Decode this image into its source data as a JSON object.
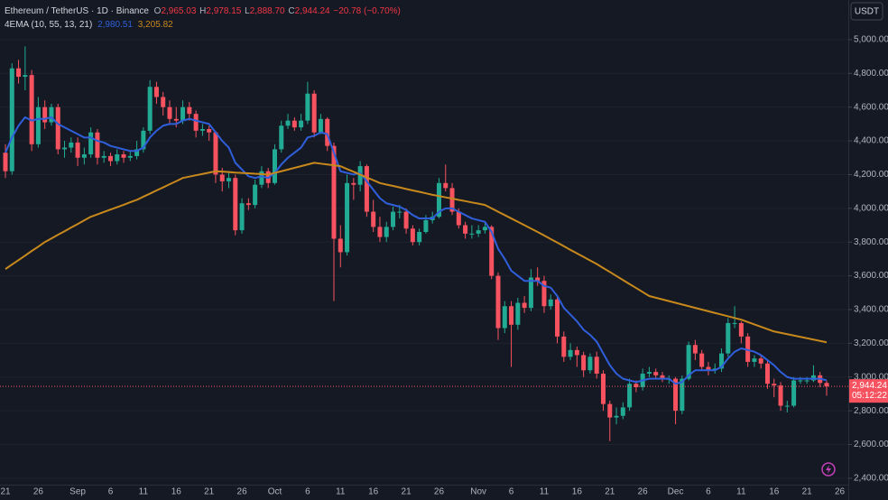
{
  "chart_data": {
    "type": "candlestick",
    "legend": {
      "symbol": "Ethereum / TetherUS · 1D · Binance",
      "ohlc": [
        {
          "key": "O",
          "value": "2,965.03"
        },
        {
          "key": "H",
          "value": "2,978.15"
        },
        {
          "key": "L",
          "value": "2,888.70"
        },
        {
          "key": "C",
          "value": "2,944.24"
        }
      ],
      "change": "−20.78 (−0.70%)",
      "indicator": "4EMA (10, 55, 13, 21)"
    },
    "currency_button": "USDT",
    "last_price_label": "2,944.24",
    "countdown": "05:12:22",
    "up_color": "#22ab94",
    "down_color": "#f7525f",
    "grid": true,
    "categories": [
      "21",
      null,
      null,
      null,
      null,
      "26",
      null,
      null,
      null,
      null,
      null,
      "Sep",
      null,
      null,
      null,
      null,
      "6",
      null,
      null,
      null,
      null,
      "11",
      null,
      null,
      null,
      null,
      "16",
      null,
      null,
      null,
      null,
      "21",
      null,
      null,
      null,
      null,
      "26",
      null,
      null,
      null,
      null,
      "Oct",
      null,
      null,
      null,
      null,
      "6",
      null,
      null,
      null,
      null,
      "11",
      null,
      null,
      null,
      null,
      "16",
      null,
      null,
      null,
      null,
      "21",
      null,
      null,
      null,
      null,
      "26",
      null,
      null,
      null,
      null,
      null,
      "Nov",
      null,
      null,
      null,
      null,
      "6",
      null,
      null,
      null,
      null,
      "11",
      null,
      null,
      null,
      null,
      "16",
      null,
      null,
      null,
      null,
      "21",
      null,
      null,
      null,
      null,
      "26",
      null,
      null,
      null,
      null,
      "Dec",
      null,
      null,
      null,
      null,
      "6",
      null,
      null,
      null,
      null,
      "11",
      null,
      null,
      null,
      null,
      "16",
      null,
      null,
      null,
      null,
      "21",
      null,
      null,
      null,
      null,
      "26"
    ],
    "open": [
      4330,
      4220,
      4830,
      4780,
      4790,
      4380,
      4600,
      4510,
      4600,
      4350,
      4360,
      4390,
      4300,
      4320,
      4450,
      4300,
      4310,
      4280,
      4320,
      4300,
      4310,
      4350,
      4460,
      4720,
      4660,
      4600,
      4530,
      4520,
      4600,
      4560,
      4460,
      4470,
      4450,
      4200,
      4160,
      4180,
      3870,
      4030,
      4020,
      4140,
      4220,
      4150,
      4350,
      4490,
      4520,
      4480,
      4520,
      4680,
      4450,
      4530,
      4370,
      3820,
      3740,
      4150,
      4140,
      4250,
      3980,
      3890,
      3830,
      3890,
      3980,
      3980,
      3880,
      3800,
      3860,
      3930,
      3950,
      4150,
      4120,
      3980,
      3900,
      3850,
      3850,
      3870,
      3890,
      3600,
      3290,
      3420,
      3310,
      3440,
      3410,
      3590,
      3570,
      3420,
      3460,
      3240,
      3120,
      3160,
      3130,
      3040,
      3120,
      3020,
      2840,
      2760,
      2770,
      2820,
      2960,
      2940,
      3020,
      3030,
      3010,
      2990,
      2990,
      2800,
      2990,
      3190,
      3140,
      3060,
      3040,
      3050,
      3140,
      3320,
      3320,
      3240,
      3090,
      3110,
      3080,
      2960,
      2950,
      2830,
      2830,
      2980,
      2980,
      2980,
      3010,
      2965.03,
      null,
      null
    ],
    "high": [
      4380,
      4860,
      4880,
      4960,
      4820,
      4660,
      4640,
      4620,
      4620,
      4400,
      4420,
      4420,
      4360,
      4480,
      4470,
      4340,
      4330,
      4350,
      4340,
      4340,
      4400,
      4480,
      4760,
      4750,
      4690,
      4640,
      4600,
      4640,
      4630,
      4580,
      4500,
      4490,
      4460,
      4240,
      4220,
      4200,
      4060,
      4060,
      4170,
      4250,
      4240,
      4380,
      4520,
      4560,
      4540,
      4560,
      4750,
      4700,
      4560,
      4540,
      4390,
      3900,
      4200,
      4180,
      4280,
      4260,
      4050,
      3950,
      3920,
      4010,
      4020,
      4000,
      3900,
      3880,
      3960,
      3980,
      4180,
      4260,
      4150,
      4000,
      3920,
      3900,
      3900,
      3920,
      3900,
      3620,
      3450,
      3450,
      3470,
      3480,
      3640,
      3650,
      3600,
      3490,
      3480,
      3270,
      3200,
      3180,
      3150,
      3140,
      3150,
      3040,
      2860,
      2820,
      2850,
      2990,
      2980,
      3050,
      3060,
      3050,
      3030,
      3010,
      3000,
      3010,
      3210,
      3220,
      3160,
      3090,
      3080,
      3170,
      3350,
      3420,
      3330,
      3260,
      3130,
      3130,
      3100,
      2990,
      2970,
      2860,
      3000,
      3000,
      3000,
      3070,
      3030,
      2978.15,
      null,
      null
    ],
    "low": [
      4180,
      4200,
      4740,
      4700,
      4340,
      4360,
      4470,
      4490,
      4320,
      4300,
      4330,
      4250,
      4260,
      4300,
      4260,
      4270,
      4250,
      4260,
      4270,
      4280,
      4290,
      4330,
      4440,
      4620,
      4550,
      4500,
      4480,
      4500,
      4520,
      4420,
      4430,
      4400,
      4150,
      4100,
      4120,
      3840,
      3850,
      3990,
      4000,
      4120,
      4120,
      4140,
      4330,
      4470,
      4460,
      4460,
      4500,
      4420,
      4440,
      4340,
      3450,
      3650,
      3720,
      4050,
      4100,
      3950,
      3860,
      3800,
      3800,
      3870,
      3940,
      3850,
      3780,
      3780,
      3850,
      3910,
      3940,
      4100,
      3960,
      3880,
      3820,
      3820,
      3830,
      3850,
      3580,
      3220,
      3260,
      3060,
      3280,
      3380,
      3390,
      3540,
      3380,
      3400,
      3200,
      3090,
      3100,
      3060,
      3000,
      3020,
      2990,
      2800,
      2620,
      2720,
      2750,
      2800,
      2910,
      2920,
      3000,
      2990,
      2970,
      2960,
      2720,
      2780,
      2980,
      3100,
      3040,
      3010,
      3020,
      3030,
      3120,
      3290,
      3200,
      3060,
      3060,
      3050,
      2930,
      2880,
      2800,
      2790,
      2820,
      2960,
      2960,
      2970,
      2940,
      2888.7,
      null,
      null
    ],
    "close": [
      4220,
      4830,
      4780,
      4790,
      4380,
      4600,
      4510,
      4600,
      4350,
      4360,
      4390,
      4300,
      4320,
      4450,
      4300,
      4310,
      4280,
      4320,
      4300,
      4310,
      4350,
      4460,
      4720,
      4660,
      4600,
      4530,
      4520,
      4600,
      4560,
      4460,
      4470,
      4450,
      4200,
      4160,
      4180,
      3870,
      4030,
      4020,
      4140,
      4220,
      4150,
      4350,
      4490,
      4520,
      4480,
      4520,
      4680,
      4450,
      4530,
      4370,
      3820,
      3740,
      4150,
      4140,
      4250,
      3980,
      3890,
      3830,
      3890,
      3980,
      3980,
      3880,
      3800,
      3860,
      3930,
      3950,
      4150,
      4120,
      3980,
      3900,
      3850,
      3850,
      3870,
      3890,
      3600,
      3290,
      3420,
      3310,
      3440,
      3410,
      3590,
      3570,
      3420,
      3460,
      3240,
      3120,
      3160,
      3130,
      3040,
      3120,
      3020,
      2840,
      2760,
      2770,
      2820,
      2960,
      2940,
      3020,
      3030,
      3010,
      2990,
      2990,
      2800,
      2990,
      3190,
      3140,
      3060,
      3040,
      3050,
      3140,
      3320,
      3320,
      3240,
      3090,
      3110,
      3080,
      2960,
      2950,
      2830,
      2830,
      2980,
      2980,
      2980,
      3010,
      2965.03,
      2944.24,
      null,
      null
    ],
    "lines": [
      {
        "color": "#2f5fdb",
        "label": "2,980.51",
        "values": [
          4330,
          4420,
          4490,
          4540,
          4520,
          4530,
          4530,
          4540,
          4500,
          4480,
          4460,
          4440,
          4420,
          4420,
          4400,
          4390,
          4370,
          4360,
          4350,
          4340,
          4340,
          4360,
          4420,
          4460,
          4490,
          4500,
          4500,
          4520,
          4530,
          4520,
          4510,
          4500,
          4450,
          4400,
          4360,
          4270,
          4230,
          4190,
          4180,
          4190,
          4180,
          4210,
          4260,
          4300,
          4330,
          4360,
          4420,
          4430,
          4450,
          4440,
          4330,
          4220,
          4210,
          4200,
          4210,
          4160,
          4110,
          4060,
          4030,
          4020,
          4010,
          3990,
          3960,
          3940,
          3940,
          3940,
          3980,
          4000,
          4000,
          3980,
          3960,
          3940,
          3930,
          3920,
          3860,
          3760,
          3700,
          3630,
          3600,
          3570,
          3570,
          3570,
          3540,
          3530,
          3480,
          3410,
          3370,
          3330,
          3280,
          3250,
          3210,
          3140,
          3070,
          3020,
          2990,
          2980,
          2970,
          2980,
          2990,
          2990,
          2990,
          2990,
          2960,
          2970,
          3010,
          3040,
          3040,
          3040,
          3040,
          3060,
          3110,
          3150,
          3170,
          3160,
          3150,
          3130,
          3100,
          3070,
          3030,
          3000,
          2990,
          2990,
          2990,
          2990,
          2990,
          2980.51,
          null,
          null
        ]
      },
      {
        "color": "#c8891c",
        "label": "3,205.82",
        "values": [
          3640,
          3667,
          3693,
          3720,
          3747,
          3773,
          3800,
          3821,
          3843,
          3864,
          3886,
          3907,
          3929,
          3950,
          3964,
          3979,
          3993,
          4007,
          4021,
          4036,
          4050,
          4069,
          4087,
          4106,
          4124,
          4143,
          4161,
          4180,
          4188,
          4196,
          4204,
          4212,
          4220,
          4218,
          4215,
          4212,
          4210,
          4208,
          4205,
          4203,
          4200,
          4210,
          4220,
          4230,
          4240,
          4250,
          4260,
          4270,
          4265,
          4260,
          4255,
          4250,
          4233,
          4217,
          4200,
          4183,
          4167,
          4150,
          4141,
          4133,
          4124,
          4115,
          4106,
          4098,
          4089,
          4080,
          4073,
          4065,
          4058,
          4050,
          4043,
          4035,
          4028,
          4020,
          4000,
          3980,
          3960,
          3940,
          3920,
          3900,
          3880,
          3860,
          3839,
          3818,
          3797,
          3776,
          3754,
          3733,
          3712,
          3691,
          3670,
          3646,
          3623,
          3599,
          3575,
          3551,
          3528,
          3504,
          3480,
          3470,
          3460,
          3450,
          3440,
          3430,
          3420,
          3410,
          3400,
          3390,
          3380,
          3370,
          3360,
          3350,
          3340,
          3326,
          3312,
          3298,
          3284,
          3270,
          3262,
          3254,
          3246,
          3238,
          3230,
          3222,
          3214,
          3205.82,
          null,
          null
        ]
      }
    ],
    "ylim": [
      2362,
      5235
    ],
    "yticks": [
      {
        "value": 2400,
        "label": "2,400.00"
      },
      {
        "value": 2600,
        "label": "2,600.00"
      },
      {
        "value": 2800,
        "label": "2,800.00"
      },
      {
        "value": 3000,
        "label": "3,000.00"
      },
      {
        "value": 3200,
        "label": "3,200.00"
      },
      {
        "value": 3400,
        "label": "3,400.00"
      },
      {
        "value": 3600,
        "label": "3,600.00"
      },
      {
        "value": 3800,
        "label": "3,800.00"
      },
      {
        "value": 4000,
        "label": "4,000.00"
      },
      {
        "value": 4200,
        "label": "4,200.00"
      },
      {
        "value": 4400,
        "label": "4,400.00"
      },
      {
        "value": 4600,
        "label": "4,600.00"
      },
      {
        "value": 4800,
        "label": "4,800.00"
      },
      {
        "value": 5000,
        "label": "5,000.00"
      }
    ]
  }
}
